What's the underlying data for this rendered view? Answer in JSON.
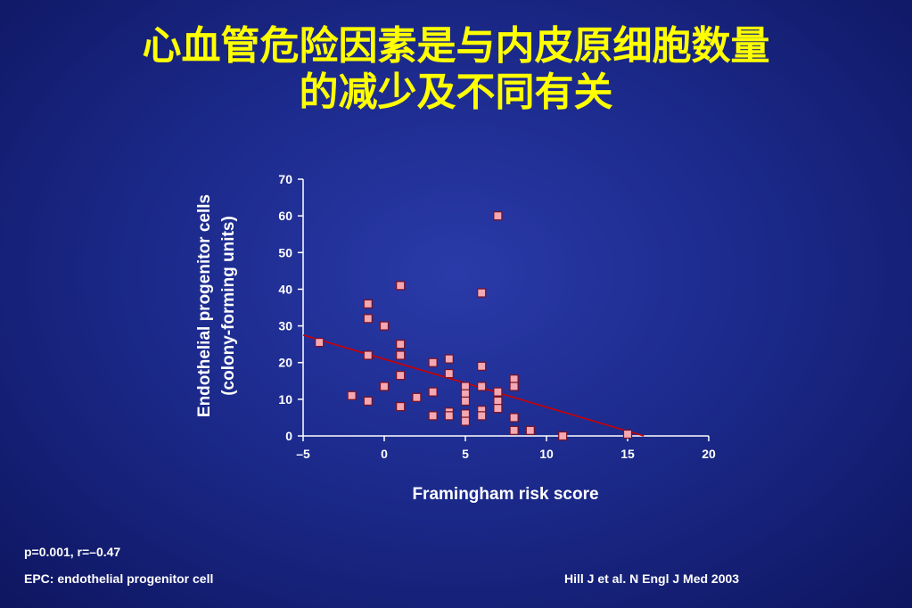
{
  "slide": {
    "title_line1": "心血管危险因素是与内皮原细胞数量",
    "title_line2": "的减少及不同有关",
    "stats": "p=0.001, r=–0.47",
    "footnote": "EPC: endothelial progenitor cell",
    "citation": "Hill J et al. N Engl J Med 2003"
  },
  "chart_data": {
    "type": "scatter",
    "xlabel": "Framingham risk score",
    "ylabel_line1": "Endothelial progenitor cells",
    "ylabel_line2": "(colony-forming units)",
    "xlim": [
      -5,
      20
    ],
    "ylim": [
      0,
      70
    ],
    "x_ticks": [
      -5,
      0,
      5,
      10,
      15,
      20
    ],
    "x_tick_labels": [
      "–5",
      "0",
      "5",
      "10",
      "15",
      "20"
    ],
    "y_ticks": [
      0,
      10,
      20,
      30,
      40,
      50,
      60,
      70
    ],
    "y_tick_labels": [
      "0",
      "10",
      "20",
      "30",
      "40",
      "50",
      "60",
      "70"
    ],
    "grid": false,
    "marker_color": "#f4a8b4",
    "line_color": "#cc0000",
    "points": [
      [
        -4,
        25.5
      ],
      [
        -2,
        11
      ],
      [
        -1,
        36
      ],
      [
        -1,
        32
      ],
      [
        -1,
        22
      ],
      [
        -1,
        9.5
      ],
      [
        0,
        30
      ],
      [
        0,
        13.5
      ],
      [
        1,
        41
      ],
      [
        1,
        25
      ],
      [
        1,
        22
      ],
      [
        1,
        16.5
      ],
      [
        1,
        8
      ],
      [
        2,
        10.5
      ],
      [
        3,
        20
      ],
      [
        3,
        12
      ],
      [
        3,
        5.5
      ],
      [
        4,
        21
      ],
      [
        4,
        17
      ],
      [
        4,
        6.5
      ],
      [
        4,
        5.5
      ],
      [
        5,
        13.5
      ],
      [
        5,
        11.5
      ],
      [
        5,
        9.5
      ],
      [
        5,
        6
      ],
      [
        5,
        4
      ],
      [
        6,
        39
      ],
      [
        6,
        19
      ],
      [
        6,
        13.5
      ],
      [
        6,
        7
      ],
      [
        6,
        5.5
      ],
      [
        7,
        60
      ],
      [
        7,
        12
      ],
      [
        7,
        9.5
      ],
      [
        7,
        7.5
      ],
      [
        8,
        15.5
      ],
      [
        8,
        13.5
      ],
      [
        8,
        5
      ],
      [
        8,
        1.5
      ],
      [
        9,
        1.5
      ],
      [
        11,
        0
      ],
      [
        15,
        0.5
      ]
    ],
    "regression_line": {
      "x": [
        -5,
        16
      ],
      "y": [
        27.5,
        0
      ]
    }
  }
}
